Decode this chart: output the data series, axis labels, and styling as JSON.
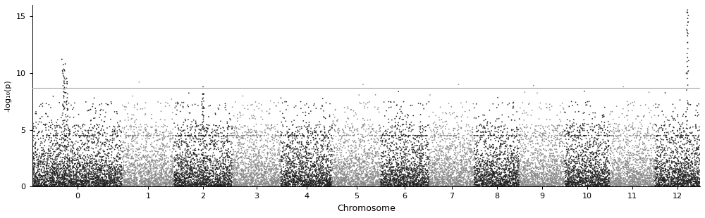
{
  "title": "",
  "xlabel": "Chromosome",
  "ylabel": "-log₁₀(p)",
  "ylim": [
    0,
    16
  ],
  "yticks": [
    0,
    5,
    10,
    15
  ],
  "threshold": 8.7,
  "threshold_color": "#aaaaaa",
  "chromosomes": [
    0,
    1,
    2,
    3,
    4,
    5,
    6,
    7,
    8,
    9,
    10,
    11,
    12
  ],
  "chr_sizes": [
    2800,
    1600,
    1800,
    1500,
    1600,
    1500,
    1500,
    1400,
    1400,
    1400,
    1400,
    1400,
    1400
  ],
  "colors_even": "#222222",
  "colors_odd": "#888888",
  "background_color": "#ffffff",
  "point_size": 1.5,
  "alpha": 1.0,
  "figsize": [
    10.0,
    3.1
  ],
  "dpi": 100,
  "seed": 12345,
  "threshold_linewidth": 0.8
}
